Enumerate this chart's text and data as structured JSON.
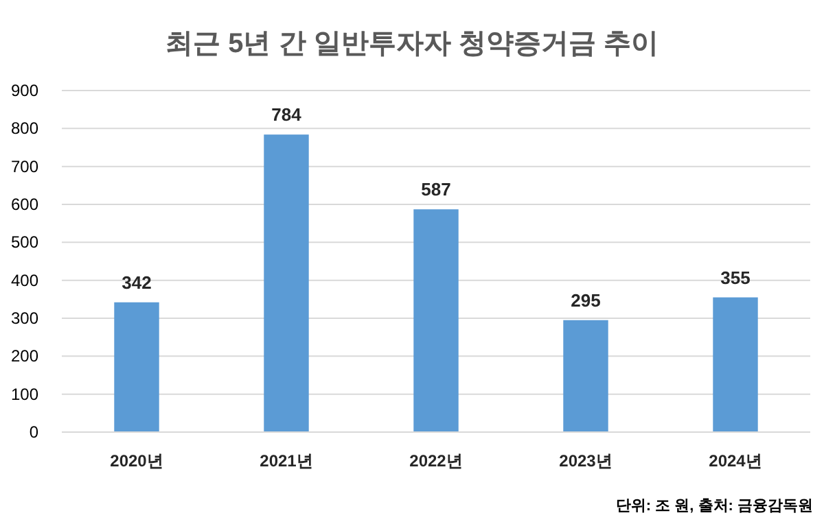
{
  "chart_data": {
    "type": "bar",
    "title": "최근 5년 간 일반투자자 청약증거금 추이",
    "categories": [
      "2020년",
      "2021년",
      "2022년",
      "2023년",
      "2024년"
    ],
    "values": [
      342,
      784,
      587,
      295,
      355
    ],
    "color": "#5b9bd5",
    "ylim": [
      0,
      900
    ],
    "yticks": [
      0,
      100,
      200,
      300,
      400,
      500,
      600,
      700,
      800,
      900
    ],
    "grid": "y",
    "data_labels": true,
    "annotations": [
      "단위: 조 원, 출처: 금융감독원"
    ]
  }
}
